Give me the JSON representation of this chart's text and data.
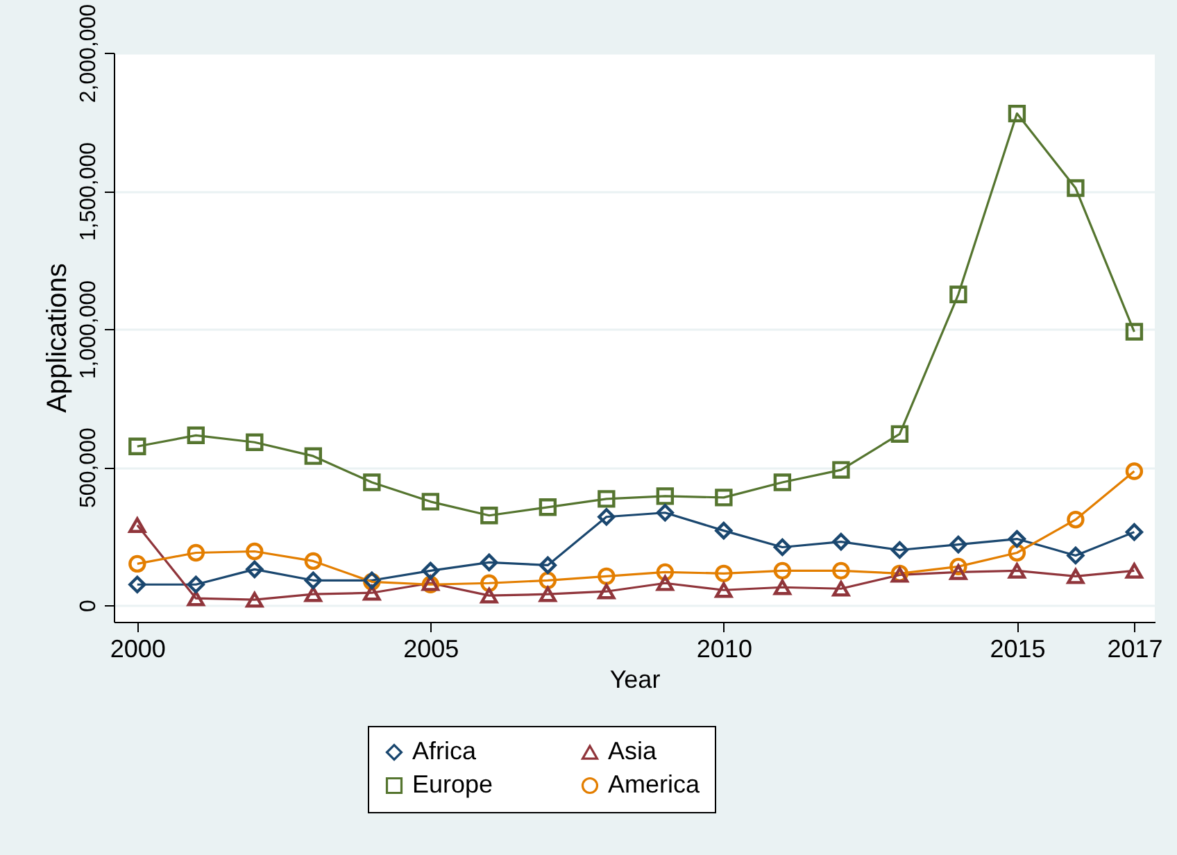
{
  "chart_data": {
    "type": "line",
    "xlabel": "Year",
    "ylabel": "Applications",
    "x": [
      2000,
      2001,
      2002,
      2003,
      2004,
      2005,
      2006,
      2007,
      2008,
      2009,
      2010,
      2011,
      2012,
      2013,
      2014,
      2015,
      2016,
      2017
    ],
    "series": [
      {
        "name": "Africa",
        "color": "#1a476f",
        "marker": "diamond",
        "values": [
          75000,
          75000,
          130000,
          90000,
          90000,
          125000,
          155000,
          145000,
          320000,
          335000,
          270000,
          210000,
          230000,
          200000,
          220000,
          240000,
          180000,
          265000
        ]
      },
      {
        "name": "Asia",
        "color": "#90353b",
        "marker": "triangle",
        "values": [
          290000,
          25000,
          20000,
          40000,
          45000,
          80000,
          35000,
          40000,
          50000,
          80000,
          55000,
          65000,
          60000,
          110000,
          120000,
          125000,
          105000,
          125000
        ]
      },
      {
        "name": "Europe",
        "color": "#55752f",
        "marker": "square",
        "values": [
          575000,
          615000,
          590000,
          540000,
          445000,
          375000,
          325000,
          355000,
          385000,
          395000,
          390000,
          445000,
          490000,
          620000,
          1125000,
          1780000,
          1510000,
          990000
        ]
      },
      {
        "name": "America",
        "color": "#e37e00",
        "marker": "circle",
        "values": [
          150000,
          190000,
          195000,
          160000,
          85000,
          75000,
          80000,
          90000,
          105000,
          120000,
          115000,
          125000,
          125000,
          115000,
          140000,
          190000,
          310000,
          485000
        ]
      }
    ],
    "xlim": [
      1999.6,
      2017.35
    ],
    "xticks": [
      2000,
      2005,
      2010,
      2015,
      2017
    ],
    "ylim": [
      -60000,
      2000000
    ],
    "yticks": [
      0,
      {
        "value": 500000,
        "label": "500,000"
      },
      {
        "value": 1000000,
        "label": "1,000,000"
      },
      {
        "value": 1500000,
        "label": "1,500,000"
      },
      {
        "value": 2000000,
        "label": "2,000,000"
      }
    ],
    "grid": "y",
    "legend": "bottom",
    "line_style": "solid"
  }
}
